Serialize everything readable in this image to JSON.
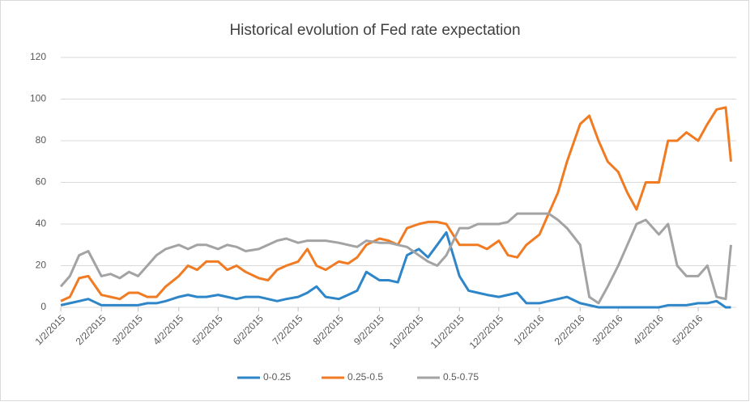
{
  "chart_data": {
    "type": "line",
    "title": "Historical evolution of Fed rate expectation",
    "x": [
      "1/2/2015",
      "1/9/2015",
      "1/16/2015",
      "1/23/2015",
      "2/2/2015",
      "2/9/2015",
      "2/16/2015",
      "2/23/2015",
      "3/2/2015",
      "3/9/2015",
      "3/16/2015",
      "3/23/2015",
      "4/2/2015",
      "4/9/2015",
      "4/16/2015",
      "4/23/2015",
      "5/2/2015",
      "5/9/2015",
      "5/16/2015",
      "5/23/2015",
      "6/2/2015",
      "6/9/2015",
      "6/16/2015",
      "6/23/2015",
      "7/2/2015",
      "7/9/2015",
      "7/16/2015",
      "7/23/2015",
      "8/2/2015",
      "8/9/2015",
      "8/16/2015",
      "8/23/2015",
      "9/2/2015",
      "9/9/2015",
      "9/16/2015",
      "9/23/2015",
      "10/2/2015",
      "10/9/2015",
      "10/16/2015",
      "10/23/2015",
      "11/2/2015",
      "11/9/2015",
      "11/16/2015",
      "11/23/2015",
      "12/2/2015",
      "12/9/2015",
      "12/16/2015",
      "12/23/2015",
      "1/2/2016",
      "1/9/2016",
      "1/16/2016",
      "1/23/2016",
      "2/2/2016",
      "2/9/2016",
      "2/16/2016",
      "2/23/2016",
      "3/2/2016",
      "3/9/2016",
      "3/16/2016",
      "3/23/2016",
      "4/2/2016",
      "4/9/2016",
      "4/16/2016",
      "4/23/2016",
      "5/2/2016",
      "5/9/2016",
      "5/16/2016",
      "5/23/2016",
      "5/27/2016"
    ],
    "series": [
      {
        "name": "0-0.25",
        "color": "#2e86c9",
        "values": [
          1,
          2,
          3,
          4,
          1,
          1,
          1,
          1,
          1,
          2,
          2,
          3,
          5,
          6,
          5,
          5,
          6,
          5,
          4,
          5,
          5,
          4,
          3,
          4,
          5,
          7,
          10,
          5,
          4,
          6,
          8,
          17,
          13,
          13,
          12,
          25,
          28,
          24,
          30,
          36,
          15,
          8,
          7,
          6,
          5,
          6,
          7,
          2,
          2,
          3,
          4,
          5,
          2,
          1,
          0,
          0,
          0,
          0,
          0,
          0,
          0,
          1,
          1,
          1,
          2,
          2,
          3,
          0,
          0
        ]
      },
      {
        "name": "0.25-0.5",
        "color": "#f07b22",
        "values": [
          3,
          5,
          14,
          15,
          6,
          5,
          4,
          7,
          7,
          5,
          5,
          10,
          15,
          20,
          18,
          22,
          22,
          18,
          20,
          17,
          14,
          13,
          18,
          20,
          22,
          28,
          20,
          18,
          22,
          21,
          24,
          30,
          33,
          32,
          30,
          38,
          40,
          41,
          41,
          40,
          30,
          30,
          30,
          28,
          32,
          25,
          24,
          30,
          35,
          45,
          55,
          70,
          88,
          92,
          80,
          70,
          65,
          55,
          47,
          60,
          60,
          80,
          80,
          84,
          80,
          88,
          95,
          96,
          70
        ]
      },
      {
        "name": "0.5-0.75",
        "color": "#a3a3a3",
        "values": [
          10,
          15,
          25,
          27,
          15,
          16,
          14,
          17,
          15,
          20,
          25,
          28,
          30,
          28,
          30,
          30,
          28,
          30,
          29,
          27,
          28,
          30,
          32,
          33,
          31,
          32,
          32,
          32,
          31,
          30,
          29,
          32,
          31,
          31,
          30,
          29,
          25,
          22,
          20,
          25,
          38,
          38,
          40,
          40,
          40,
          41,
          45,
          45,
          45,
          45,
          42,
          38,
          30,
          5,
          2,
          10,
          20,
          30,
          40,
          42,
          35,
          40,
          20,
          15,
          15,
          20,
          5,
          4,
          30
        ]
      }
    ],
    "xlim": [
      "1/2/2015",
      "5/31/2016"
    ],
    "xticks": [
      "1/2/2015",
      "2/2/2015",
      "3/2/2015",
      "4/2/2015",
      "5/2/2015",
      "6/2/2015",
      "7/2/2015",
      "8/2/2015",
      "9/2/2015",
      "10/2/2015",
      "11/2/2015",
      "12/2/2015",
      "1/2/2016",
      "2/2/2016",
      "3/2/2016",
      "4/2/2016",
      "5/2/2016"
    ],
    "ylim": [
      0,
      120
    ],
    "yticks": [
      0,
      20,
      40,
      60,
      80,
      100,
      120
    ],
    "grid": true,
    "legend": "bottom"
  }
}
